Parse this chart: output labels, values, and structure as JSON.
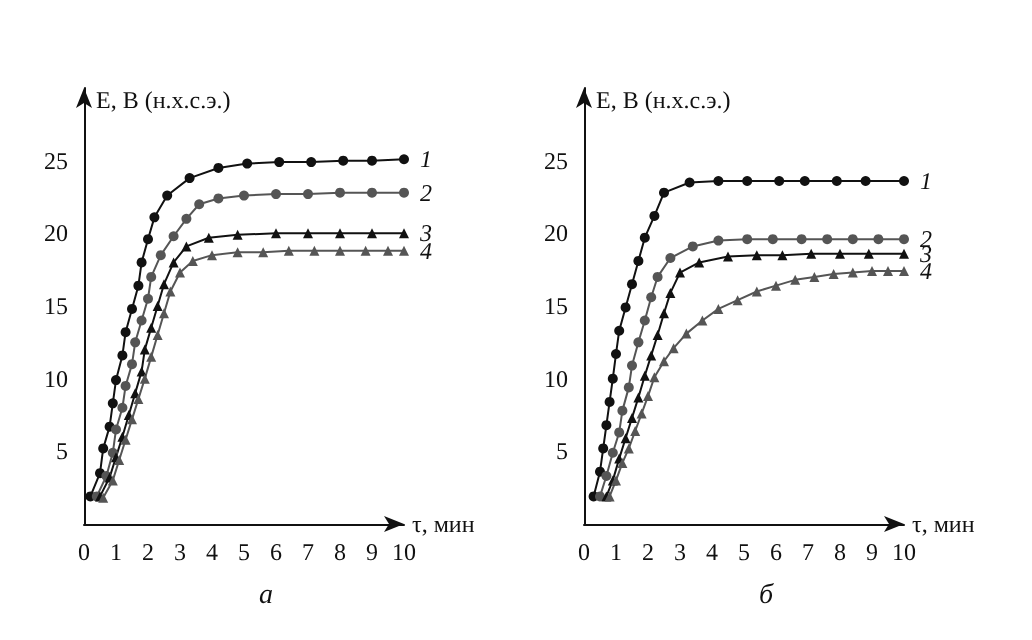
{
  "chart_data": [
    {
      "type": "line",
      "title": "а",
      "xlabel": "τ, мин",
      "ylabel": "E, В (н.х.с.э.)",
      "xlim": [
        0,
        10
      ],
      "ylim": [
        0,
        30
      ],
      "xticks": [
        0,
        1,
        2,
        3,
        4,
        5,
        6,
        7,
        8,
        9,
        10
      ],
      "yticks": [
        5,
        10,
        15,
        20,
        25
      ],
      "grid": false,
      "legend": false,
      "line_style": "solid",
      "series": [
        {
          "name": "1",
          "color": "#111111",
          "marker": "circle",
          "x": [
            0.2,
            0.5,
            0.6,
            0.8,
            0.9,
            1.0,
            1.2,
            1.3,
            1.5,
            1.7,
            1.8,
            2.0,
            2.2,
            2.6,
            3.3,
            4.2,
            5.1,
            6.1,
            7.1,
            8.1,
            9.0,
            10
          ],
          "values": [
            1.9,
            3.5,
            5.2,
            6.7,
            8.3,
            9.9,
            11.6,
            13.2,
            14.8,
            16.4,
            18.0,
            19.6,
            21.1,
            22.6,
            23.8,
            24.5,
            24.8,
            24.9,
            24.9,
            25.0,
            25.0,
            25.1
          ]
        },
        {
          "name": "2",
          "color": "#555555",
          "marker": "circle",
          "x": [
            0.4,
            0.7,
            0.9,
            1.0,
            1.2,
            1.3,
            1.5,
            1.6,
            1.8,
            2.0,
            2.1,
            2.4,
            2.8,
            3.2,
            3.6,
            4.2,
            5.0,
            6,
            7,
            8,
            9,
            10
          ],
          "values": [
            1.9,
            3.3,
            4.9,
            6.5,
            8.0,
            9.5,
            11.0,
            12.5,
            14.0,
            15.5,
            17.0,
            18.5,
            19.8,
            21.0,
            22.0,
            22.4,
            22.6,
            22.7,
            22.7,
            22.8,
            22.8,
            22.8
          ]
        },
        {
          "name": "3",
          "color": "#111111",
          "marker": "triangle",
          "x": [
            0.5,
            0.8,
            1.0,
            1.2,
            1.4,
            1.6,
            1.8,
            1.9,
            2.1,
            2.3,
            2.5,
            2.8,
            3.2,
            3.9,
            4.8,
            6,
            7,
            8,
            9,
            10
          ],
          "values": [
            1.9,
            3.2,
            4.6,
            6.0,
            7.5,
            9,
            10.5,
            12,
            13.5,
            15,
            16.5,
            18,
            19.1,
            19.7,
            19.9,
            20,
            20,
            20,
            20,
            20
          ]
        },
        {
          "name": "4",
          "color": "#555555",
          "marker": "triangle",
          "x": [
            0.6,
            0.9,
            1.1,
            1.3,
            1.5,
            1.7,
            1.9,
            2.1,
            2.3,
            2.5,
            2.7,
            3.0,
            3.4,
            4.0,
            4.8,
            5.6,
            6.4,
            7.2,
            8,
            8.8,
            9.5,
            10
          ],
          "values": [
            1.8,
            3.0,
            4.4,
            5.8,
            7.2,
            8.6,
            10,
            11.5,
            13,
            14.5,
            16,
            17.3,
            18.1,
            18.5,
            18.7,
            18.7,
            18.8,
            18.8,
            18.8,
            18.8,
            18.8,
            18.8
          ]
        }
      ]
    },
    {
      "type": "line",
      "title": "б",
      "xlabel": "τ, мин",
      "ylabel": "E, В (н.х.с.э.)",
      "xlim": [
        0,
        10
      ],
      "ylim": [
        0,
        30
      ],
      "xticks": [
        0,
        1,
        2,
        3,
        4,
        5,
        6,
        7,
        8,
        9,
        10
      ],
      "yticks": [
        5,
        10,
        15,
        20,
        25
      ],
      "grid": false,
      "legend": false,
      "line_style": "solid",
      "series": [
        {
          "name": "1",
          "color": "#111111",
          "marker": "circle",
          "x": [
            0.3,
            0.5,
            0.6,
            0.7,
            0.8,
            0.9,
            1.0,
            1.1,
            1.3,
            1.5,
            1.7,
            1.9,
            2.2,
            2.5,
            3.3,
            4.2,
            5.1,
            6.1,
            6.9,
            7.9,
            8.8,
            10
          ],
          "values": [
            1.9,
            3.6,
            5.2,
            6.8,
            8.4,
            10.0,
            11.7,
            13.3,
            14.9,
            16.5,
            18.1,
            19.7,
            21.2,
            22.8,
            23.5,
            23.6,
            23.6,
            23.6,
            23.6,
            23.6,
            23.6,
            23.6
          ]
        },
        {
          "name": "2",
          "color": "#555555",
          "marker": "circle",
          "x": [
            0.5,
            0.7,
            0.9,
            1.1,
            1.2,
            1.4,
            1.5,
            1.7,
            1.9,
            2.1,
            2.3,
            2.7,
            3.4,
            4.2,
            5.1,
            5.9,
            6.8,
            7.6,
            8.4,
            9.2,
            10
          ],
          "values": [
            1.9,
            3.3,
            4.9,
            6.3,
            7.8,
            9.4,
            10.9,
            12.5,
            14,
            15.6,
            17,
            18.3,
            19.1,
            19.5,
            19.6,
            19.6,
            19.6,
            19.6,
            19.6,
            19.6,
            19.6
          ]
        },
        {
          "name": "3",
          "color": "#111111",
          "marker": "triangle",
          "x": [
            0.7,
            0.9,
            1.1,
            1.3,
            1.5,
            1.7,
            1.9,
            2.1,
            2.3,
            2.5,
            2.7,
            3.0,
            3.6,
            4.5,
            5.4,
            6.2,
            7.1,
            8,
            8.9,
            10
          ],
          "values": [
            1.9,
            3.0,
            4.5,
            5.9,
            7.3,
            8.7,
            10.2,
            11.6,
            13,
            14.5,
            15.9,
            17.3,
            18.0,
            18.4,
            18.5,
            18.5,
            18.6,
            18.6,
            18.6,
            18.6
          ]
        },
        {
          "name": "4",
          "color": "#555555",
          "marker": "triangle",
          "x": [
            0.8,
            1.0,
            1.2,
            1.4,
            1.6,
            1.8,
            2.0,
            2.2,
            2.5,
            2.8,
            3.2,
            3.7,
            4.2,
            4.8,
            5.4,
            6.0,
            6.6,
            7.2,
            7.8,
            8.4,
            9.0,
            9.5,
            10
          ],
          "values": [
            1.9,
            3.0,
            4.2,
            5.2,
            6.4,
            7.6,
            8.8,
            10.1,
            11.2,
            12.1,
            13.1,
            14.0,
            14.8,
            15.4,
            16.0,
            16.4,
            16.8,
            17.0,
            17.2,
            17.3,
            17.4,
            17.4,
            17.4
          ]
        }
      ]
    }
  ]
}
